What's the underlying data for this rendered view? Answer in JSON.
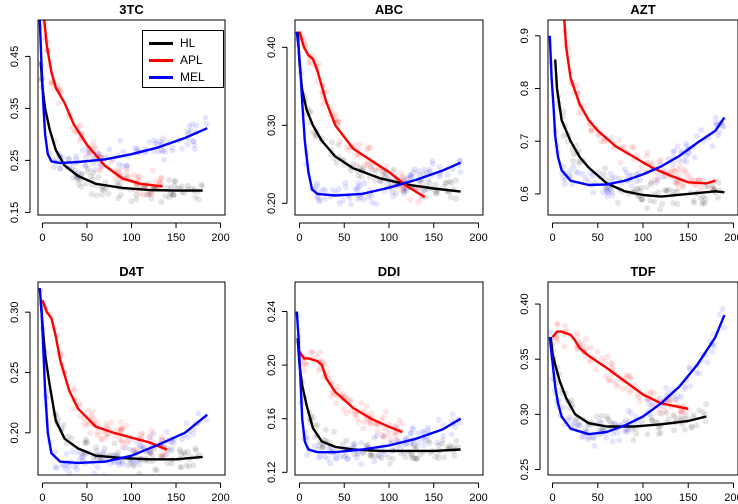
{
  "colors": {
    "HL": "#000000",
    "APL": "#ff0000",
    "MEL": "#0000ff"
  },
  "legend": [
    {
      "name": "HL",
      "color": "#000000"
    },
    {
      "name": "APL",
      "color": "#ff0000"
    },
    {
      "name": "MEL",
      "color": "#0000ff"
    }
  ],
  "chart_data": [
    {
      "type": "line",
      "title": "3TC",
      "xlim": [
        -5,
        205
      ],
      "ylim": [
        0.145,
        0.52
      ],
      "xticks": [
        0,
        50,
        100,
        150,
        200
      ],
      "yticks": [
        0.15,
        0.25,
        0.35,
        0.45
      ],
      "ytick_labels": [
        "0.15",
        "0.25",
        "0.35",
        "0.45"
      ],
      "series": [
        {
          "name": "HL",
          "x": [
            -2,
            0,
            3,
            8,
            15,
            25,
            40,
            60,
            90,
            120,
            150,
            180
          ],
          "y": [
            0.44,
            0.39,
            0.35,
            0.31,
            0.27,
            0.24,
            0.22,
            0.205,
            0.197,
            0.193,
            0.192,
            0.192
          ]
        },
        {
          "name": "APL",
          "x": [
            2,
            5,
            10,
            15,
            25,
            35,
            50,
            70,
            90,
            110,
            135
          ],
          "y": [
            0.52,
            0.47,
            0.42,
            0.39,
            0.36,
            0.32,
            0.28,
            0.24,
            0.215,
            0.205,
            0.2
          ]
        },
        {
          "name": "MEL",
          "x": [
            -3,
            -1,
            1,
            3,
            6,
            10,
            20,
            40,
            70,
            100,
            130,
            160,
            185
          ],
          "y": [
            0.52,
            0.43,
            0.36,
            0.3,
            0.262,
            0.248,
            0.245,
            0.247,
            0.252,
            0.262,
            0.275,
            0.293,
            0.312
          ]
        }
      ]
    },
    {
      "type": "line",
      "title": "ABC",
      "xlim": [
        -5,
        205
      ],
      "ylim": [
        0.185,
        0.435
      ],
      "xticks": [
        0,
        50,
        100,
        150,
        200
      ],
      "yticks": [
        0.2,
        0.3,
        0.4
      ],
      "ytick_labels": [
        "0.20",
        "0.30",
        "0.40"
      ],
      "series": [
        {
          "name": "HL",
          "x": [
            -2,
            0,
            3,
            8,
            15,
            25,
            40,
            60,
            90,
            120,
            150,
            180
          ],
          "y": [
            0.42,
            0.38,
            0.345,
            0.32,
            0.3,
            0.28,
            0.26,
            0.245,
            0.232,
            0.224,
            0.219,
            0.215
          ]
        },
        {
          "name": "APL",
          "x": [
            0,
            5,
            10,
            15,
            20,
            30,
            40,
            60,
            80,
            100,
            120,
            140
          ],
          "y": [
            0.42,
            0.4,
            0.39,
            0.385,
            0.37,
            0.33,
            0.3,
            0.27,
            0.255,
            0.24,
            0.222,
            0.208
          ]
        },
        {
          "name": "MEL",
          "x": [
            -3,
            -1,
            1,
            3,
            6,
            10,
            14,
            20,
            40,
            70,
            100,
            130,
            160,
            180
          ],
          "y": [
            0.42,
            0.4,
            0.37,
            0.33,
            0.28,
            0.24,
            0.218,
            0.212,
            0.21,
            0.212,
            0.22,
            0.23,
            0.242,
            0.252
          ]
        }
      ]
    },
    {
      "type": "line",
      "title": "AZT",
      "xlim": [
        -5,
        205
      ],
      "ylim": [
        0.56,
        0.93
      ],
      "xticks": [
        0,
        50,
        100,
        150,
        200
      ],
      "yticks": [
        0.6,
        0.7,
        0.8,
        0.9
      ],
      "ytick_labels": [
        "0.6",
        "0.7",
        "0.8",
        "0.9"
      ],
      "series": [
        {
          "name": "HL",
          "x": [
            3,
            5,
            10,
            20,
            30,
            40,
            60,
            80,
            100,
            120,
            150,
            180,
            190
          ],
          "y": [
            0.855,
            0.8,
            0.74,
            0.7,
            0.67,
            0.65,
            0.62,
            0.605,
            0.598,
            0.595,
            0.6,
            0.605,
            0.603
          ]
        },
        {
          "name": "APL",
          "x": [
            13,
            15,
            20,
            30,
            40,
            50,
            70,
            90,
            110,
            130,
            150,
            170,
            180
          ],
          "y": [
            0.93,
            0.88,
            0.82,
            0.77,
            0.74,
            0.72,
            0.69,
            0.67,
            0.65,
            0.635,
            0.622,
            0.62,
            0.625
          ]
        },
        {
          "name": "MEL",
          "x": [
            -3,
            -1,
            1,
            3,
            6,
            10,
            20,
            40,
            60,
            80,
            100,
            120,
            140,
            160,
            180,
            190
          ],
          "y": [
            0.9,
            0.82,
            0.77,
            0.71,
            0.67,
            0.645,
            0.625,
            0.617,
            0.618,
            0.625,
            0.637,
            0.652,
            0.672,
            0.697,
            0.72,
            0.745
          ]
        }
      ]
    },
    {
      "type": "line",
      "title": "D4T",
      "xlim": [
        -5,
        205
      ],
      "ylim": [
        0.165,
        0.325
      ],
      "xticks": [
        0,
        50,
        100,
        150,
        200
      ],
      "yticks": [
        0.2,
        0.25,
        0.3
      ],
      "ytick_labels": [
        "0.20",
        "0.25",
        "0.30"
      ],
      "series": [
        {
          "name": "HL",
          "x": [
            -2,
            0,
            3,
            8,
            15,
            25,
            40,
            60,
            90,
            120,
            150,
            180
          ],
          "y": [
            0.31,
            0.29,
            0.265,
            0.24,
            0.21,
            0.195,
            0.187,
            0.181,
            0.179,
            0.178,
            0.178,
            0.18
          ]
        },
        {
          "name": "APL",
          "x": [
            0,
            5,
            10,
            15,
            20,
            30,
            40,
            60,
            80,
            100,
            120,
            140
          ],
          "y": [
            0.31,
            0.3,
            0.295,
            0.28,
            0.26,
            0.235,
            0.22,
            0.205,
            0.2,
            0.196,
            0.192,
            0.186
          ]
        },
        {
          "name": "MEL",
          "x": [
            -3,
            -1,
            1,
            3,
            6,
            10,
            20,
            40,
            70,
            100,
            130,
            160,
            185
          ],
          "y": [
            0.32,
            0.3,
            0.27,
            0.235,
            0.2,
            0.183,
            0.176,
            0.175,
            0.176,
            0.181,
            0.19,
            0.2,
            0.215
          ]
        }
      ]
    },
    {
      "type": "line",
      "title": "DDI",
      "xlim": [
        -5,
        205
      ],
      "ylim": [
        0.118,
        0.262
      ],
      "xticks": [
        0,
        50,
        100,
        150,
        200
      ],
      "yticks": [
        0.12,
        0.16,
        0.2,
        0.24
      ],
      "ytick_labels": [
        "0.12",
        "0.16",
        "0.20",
        "0.24"
      ],
      "series": [
        {
          "name": "HL",
          "x": [
            -2,
            0,
            3,
            8,
            15,
            25,
            40,
            60,
            90,
            120,
            150,
            180
          ],
          "y": [
            0.22,
            0.2,
            0.185,
            0.17,
            0.153,
            0.143,
            0.139,
            0.137,
            0.136,
            0.136,
            0.136,
            0.137
          ]
        },
        {
          "name": "APL",
          "x": [
            0,
            5,
            10,
            20,
            25,
            30,
            40,
            60,
            80,
            100,
            115
          ],
          "y": [
            0.21,
            0.205,
            0.205,
            0.203,
            0.2,
            0.19,
            0.18,
            0.168,
            0.16,
            0.154,
            0.15
          ]
        },
        {
          "name": "MEL",
          "x": [
            -3,
            -1,
            1,
            3,
            6,
            10,
            20,
            40,
            70,
            100,
            130,
            160,
            180
          ],
          "y": [
            0.24,
            0.22,
            0.19,
            0.16,
            0.143,
            0.137,
            0.135,
            0.135,
            0.137,
            0.14,
            0.145,
            0.152,
            0.16
          ]
        }
      ]
    },
    {
      "type": "line",
      "title": "TDF",
      "xlim": [
        -5,
        205
      ],
      "ylim": [
        0.245,
        0.42
      ],
      "xticks": [
        0,
        50,
        100,
        150,
        200
      ],
      "yticks": [
        0.25,
        0.3,
        0.35,
        0.4
      ],
      "ytick_labels": [
        "0.25",
        "0.30",
        "0.35",
        "0.40"
      ],
      "series": [
        {
          "name": "HL",
          "x": [
            -2,
            0,
            3,
            8,
            15,
            25,
            40,
            60,
            90,
            120,
            150,
            170
          ],
          "y": [
            0.37,
            0.355,
            0.345,
            0.33,
            0.315,
            0.3,
            0.292,
            0.289,
            0.289,
            0.291,
            0.294,
            0.298
          ]
        },
        {
          "name": "APL",
          "x": [
            0,
            5,
            10,
            20,
            25,
            30,
            40,
            60,
            80,
            100,
            120,
            150
          ],
          "y": [
            0.37,
            0.375,
            0.375,
            0.372,
            0.367,
            0.36,
            0.353,
            0.342,
            0.33,
            0.318,
            0.31,
            0.305
          ]
        },
        {
          "name": "MEL",
          "x": [
            -3,
            -1,
            1,
            3,
            6,
            10,
            20,
            40,
            60,
            80,
            100,
            120,
            140,
            160,
            180,
            190
          ],
          "y": [
            0.37,
            0.355,
            0.34,
            0.325,
            0.31,
            0.298,
            0.287,
            0.282,
            0.284,
            0.29,
            0.298,
            0.31,
            0.325,
            0.345,
            0.37,
            0.39
          ]
        }
      ]
    }
  ]
}
